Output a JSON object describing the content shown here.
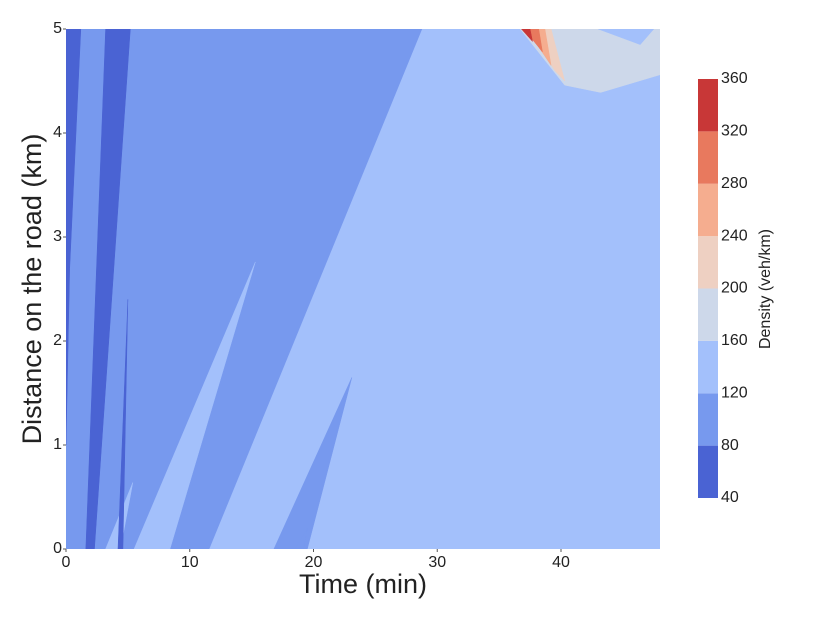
{
  "chart_data": {
    "type": "contour",
    "xlabel": "Time (min)",
    "ylabel": "Distance on the road (km)",
    "xlim": [
      0,
      48
    ],
    "ylim": [
      0,
      5
    ],
    "xticks": [
      0,
      10,
      20,
      30,
      40
    ],
    "yticks": [
      0,
      1,
      2,
      3,
      4,
      5
    ],
    "colorbar": {
      "label": "Density (veh/km)",
      "levels": [
        40,
        80,
        120,
        160,
        200,
        240,
        280,
        320,
        360
      ],
      "colors": [
        "#4a63d3",
        "#7799ee",
        "#a3c0fb",
        "#cdd8ea",
        "#eed0c2",
        "#f5ad8f",
        "#e8795e",
        "#c83737"
      ]
    },
    "regions": [
      {
        "level": 80,
        "polygon": [
          [
            0,
            0
          ],
          [
            0,
            5
          ],
          [
            48,
            5
          ],
          [
            48,
            0
          ]
        ]
      },
      {
        "level": 120,
        "polygon": [
          [
            28.8,
            5
          ],
          [
            48,
            5
          ],
          [
            48,
            0
          ],
          [
            11.6,
            0
          ]
        ]
      },
      {
        "level": 120,
        "polygon": [
          [
            5.5,
            0
          ],
          [
            15.3,
            2.76
          ],
          [
            8.4,
            0
          ]
        ]
      },
      {
        "level": 120,
        "polygon": [
          [
            3.2,
            0
          ],
          [
            5.4,
            0.64
          ],
          [
            4.4,
            0
          ]
        ]
      },
      {
        "level": 80,
        "polygon": [
          [
            16.8,
            0
          ],
          [
            23.1,
            1.65
          ],
          [
            19.5,
            0
          ]
        ]
      },
      {
        "level": 80,
        "polygon": [
          [
            18.5,
            0
          ],
          [
            19.5,
            0.2
          ],
          [
            19.2,
            0
          ]
        ]
      },
      {
        "level": 40,
        "polygon": [
          [
            0,
            1
          ],
          [
            0,
            5
          ],
          [
            1.2,
            5
          ],
          [
            0.3,
            2.7
          ]
        ]
      },
      {
        "level": 40,
        "polygon": [
          [
            3.2,
            5
          ],
          [
            5.2,
            5
          ],
          [
            2.3,
            0
          ],
          [
            1.6,
            0
          ]
        ]
      },
      {
        "level": 40,
        "polygon": [
          [
            4.2,
            0
          ],
          [
            5,
            2.4
          ],
          [
            4.6,
            0
          ]
        ]
      },
      {
        "level": 160,
        "polygon": [
          [
            36.7,
            5
          ],
          [
            48,
            5
          ],
          [
            48,
            4.56
          ],
          [
            43.2,
            4.39
          ],
          [
            40.3,
            4.46
          ]
        ]
      },
      {
        "level": 120,
        "polygon": [
          [
            43,
            5
          ],
          [
            46.4,
            4.85
          ],
          [
            47.5,
            5
          ]
        ]
      },
      {
        "level": 200,
        "polygon": [
          [
            37.4,
            5
          ],
          [
            39.5,
            4.6
          ],
          [
            40.3,
            4.5
          ],
          [
            39.2,
            5
          ]
        ]
      },
      {
        "level": 240,
        "polygon": [
          [
            37.2,
            5
          ],
          [
            39.2,
            4.65
          ],
          [
            38.7,
            5
          ]
        ]
      },
      {
        "level": 280,
        "polygon": [
          [
            37,
            5
          ],
          [
            38.5,
            4.78
          ],
          [
            38.2,
            5
          ]
        ]
      },
      {
        "level": 320,
        "polygon": [
          [
            36.8,
            5
          ],
          [
            37.7,
            4.88
          ],
          [
            37.5,
            5
          ]
        ]
      }
    ]
  }
}
